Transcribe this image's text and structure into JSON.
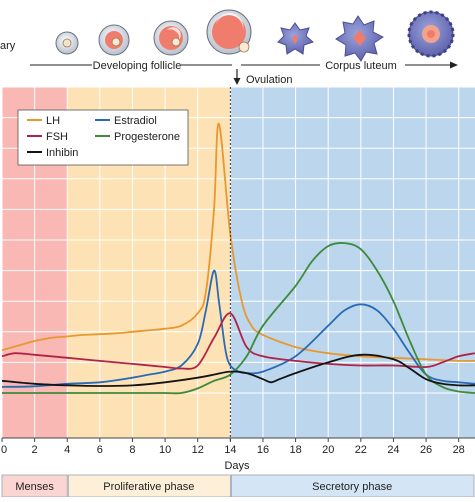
{
  "stages": {
    "ovary_label": "ary",
    "developing_label": "Developing follicle",
    "corpus_label": "Corpus luteum",
    "ovulation_label": "Ovulation"
  },
  "phases": [
    {
      "label": "Menses",
      "start": 0,
      "end": 4,
      "band_color": "#f9b8b3",
      "label_color": "#fbd5d1"
    },
    {
      "label": "Proliferative phase",
      "start": 4,
      "end": 14,
      "band_color": "#fde2b5",
      "label_color": "#fef0d8"
    },
    {
      "label": "Secretory phase",
      "start": 14,
      "end": 29,
      "band_color": "#bcd6ee",
      "label_color": "#d4e6f6"
    }
  ],
  "chart_data": {
    "type": "line",
    "xlabel": "Days",
    "xlim": [
      0,
      29
    ],
    "ylim": [
      0,
      100
    ],
    "xticks": [
      0,
      2,
      4,
      6,
      8,
      10,
      12,
      14,
      16,
      18,
      20,
      22,
      24,
      26,
      28
    ],
    "grid": true,
    "legend_position": "top-left",
    "ovulation_day": 14,
    "series": [
      {
        "name": "LH",
        "color": "#e7992f",
        "x": [
          0,
          1,
          2,
          3,
          4,
          5,
          6,
          7,
          8,
          9,
          10,
          11,
          12,
          12.5,
          13,
          13.3,
          14,
          14.7,
          15.3,
          16,
          18,
          20,
          22,
          24,
          26,
          28,
          29
        ],
        "y": [
          14,
          15.5,
          17,
          18,
          18.5,
          19,
          19.2,
          19.5,
          20,
          20.5,
          21,
          22,
          26,
          33,
          60,
          88,
          52,
          30,
          22,
          19,
          15,
          13,
          12,
          11.5,
          11,
          10.5,
          10.5
        ]
      },
      {
        "name": "Estradiol",
        "color": "#2a6bb5",
        "x": [
          0,
          2,
          4,
          6,
          8,
          9,
          10,
          11,
          12,
          12.5,
          13,
          13.3,
          13.7,
          14,
          14.5,
          15,
          16,
          18,
          20,
          21,
          22,
          23,
          24,
          25,
          26,
          27,
          28,
          29
        ],
        "y": [
          2,
          2.2,
          3,
          3.5,
          5,
          6,
          7,
          9,
          16,
          27,
          40,
          30,
          14,
          9,
          7,
          6.5,
          7,
          12,
          22,
          27,
          29,
          27,
          21,
          13,
          6,
          4,
          3.5,
          3
        ]
      },
      {
        "name": "FSH",
        "color": "#b02348",
        "x": [
          0,
          0.8,
          2,
          4,
          6,
          8,
          10,
          11,
          12,
          13,
          14,
          15,
          16,
          18,
          20,
          22,
          24,
          26,
          27,
          28,
          29
        ],
        "y": [
          12,
          13,
          12.5,
          11.5,
          10.5,
          9.5,
          8.5,
          8,
          9,
          18,
          26,
          15,
          12,
          10.5,
          9.5,
          9,
          9,
          8.5,
          10,
          12,
          13
        ]
      },
      {
        "name": "Progesterone",
        "color": "#3d8a3a",
        "x": [
          0,
          2,
          4,
          6,
          8,
          10,
          11,
          12,
          13,
          14,
          15,
          16,
          18,
          19,
          20,
          21,
          22,
          23,
          24,
          25,
          26,
          27,
          28,
          29
        ],
        "y": [
          0,
          0,
          0,
          0,
          0,
          0,
          0,
          1.5,
          4,
          6,
          12,
          22,
          35,
          43,
          48,
          49,
          47,
          40,
          30,
          17,
          6,
          2,
          0.5,
          0
        ]
      },
      {
        "name": "Inhibin",
        "color": "#141414",
        "x": [
          0,
          2,
          4,
          6,
          8,
          10,
          12,
          13,
          14,
          15,
          16,
          16.5,
          17,
          18,
          20,
          22,
          24,
          25,
          26,
          27,
          28,
          29
        ],
        "y": [
          4,
          3,
          2.5,
          2.3,
          2.5,
          3.5,
          5,
          6,
          7,
          6.5,
          4.5,
          3.5,
          4.5,
          6.5,
          10,
          12.5,
          11,
          8,
          4.5,
          3,
          2.5,
          2.5
        ]
      }
    ]
  }
}
